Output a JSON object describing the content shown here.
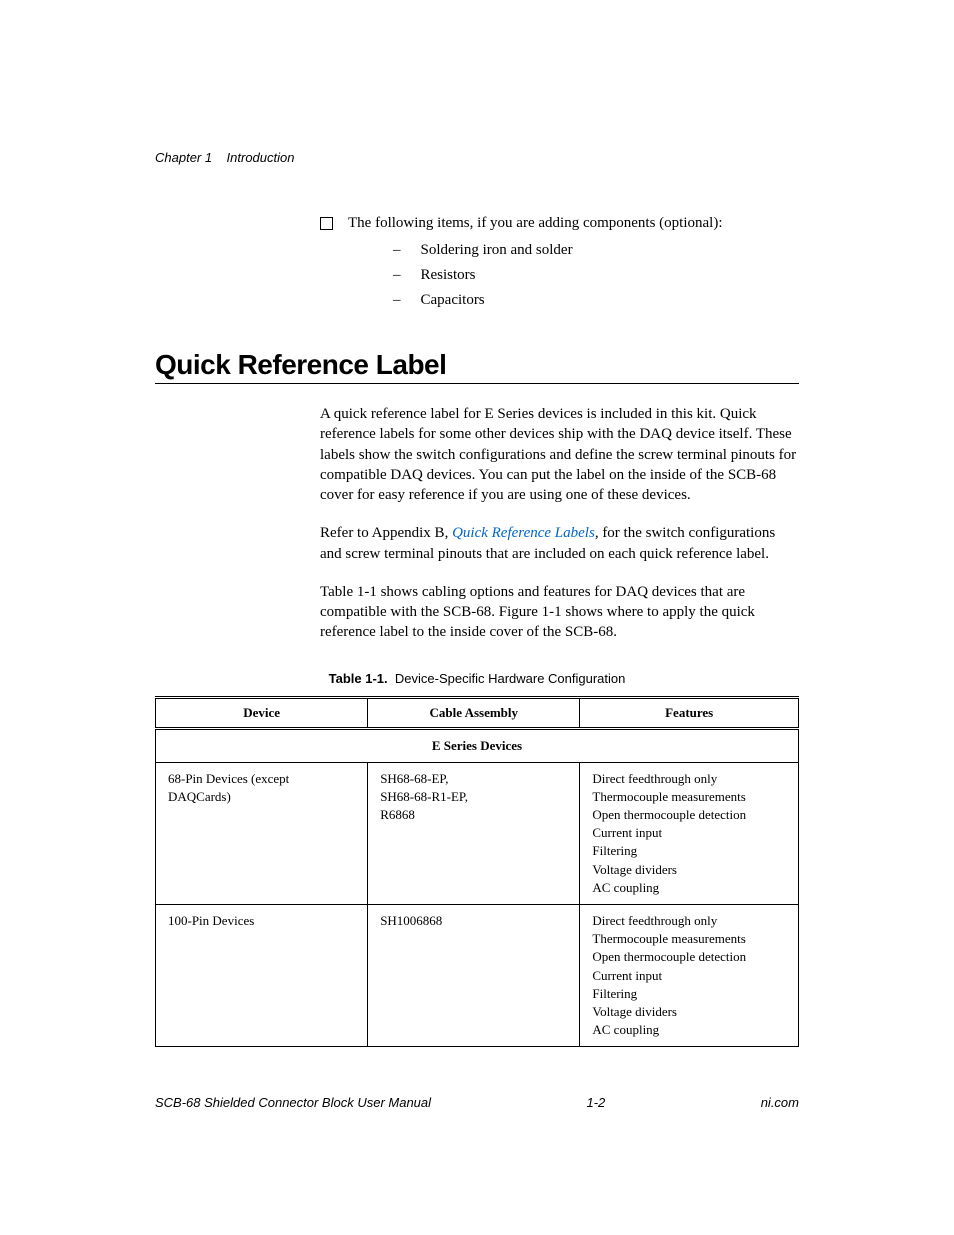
{
  "header": {
    "chapter": "Chapter 1",
    "title": "Introduction"
  },
  "introList": {
    "mainItem": "The following items, if you are adding components (optional):",
    "subItems": [
      "Soldering iron and solder",
      "Resistors",
      "Capacitors"
    ]
  },
  "section": {
    "heading": "Quick Reference Label",
    "para1": "A quick reference label for E Series devices is included in this kit. Quick reference labels for some other devices ship with the DAQ device itself. These labels show the switch configurations and define the screw terminal pinouts for compatible DAQ devices. You can put the label on the inside of the SCB-68 cover for easy reference if you are using one of these devices.",
    "para2_pre": "Refer to Appendix B, ",
    "para2_link": "Quick Reference Labels",
    "para2_post": ", for the switch configurations and screw terminal pinouts that are included on each quick reference label.",
    "para3": "Table 1-1 shows cabling options and features for DAQ devices that are compatible with the SCB-68. Figure 1-1 shows where to apply the quick reference label to the inside cover of the SCB-68."
  },
  "table": {
    "caption_label": "Table 1-1.",
    "caption_text": "Device-Specific Hardware Configuration",
    "columns": [
      "Device",
      "Cable Assembly",
      "Features"
    ],
    "sectionHeader": "E Series Devices",
    "rows": [
      {
        "device": "68-Pin Devices (except DAQCards)",
        "cable": [
          "SH68-68-EP,",
          "SH68-68-R1-EP,",
          "R6868"
        ],
        "features": [
          "Direct feedthrough only",
          "Thermocouple measurements",
          "Open thermocouple detection",
          "Current input",
          "Filtering",
          "Voltage dividers",
          "AC coupling"
        ]
      },
      {
        "device": "100-Pin Devices",
        "cable": [
          "SH1006868"
        ],
        "features": [
          "Direct feedthrough only",
          "Thermocouple measurements",
          "Open thermocouple detection",
          "Current input",
          "Filtering",
          "Voltage dividers",
          "AC coupling"
        ]
      }
    ]
  },
  "footer": {
    "left": "SCB-68 Shielded Connector Block User Manual",
    "center": "1-2",
    "right": "ni.com"
  },
  "colors": {
    "text": "#000000",
    "link": "#0066cc",
    "background": "#ffffff"
  }
}
